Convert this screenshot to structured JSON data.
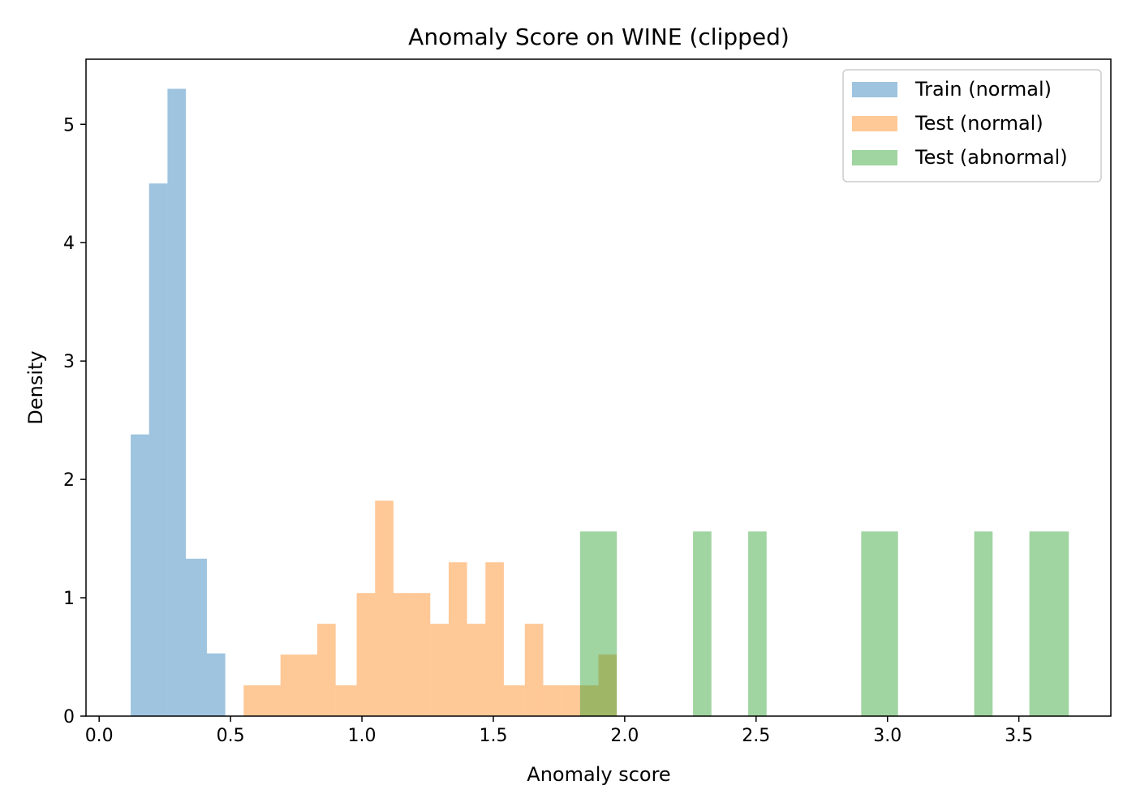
{
  "chart_data": {
    "type": "bar",
    "title": "Anomaly Score on WINE (clipped)",
    "xlabel": "Anomaly score",
    "ylabel": "Density",
    "xlim": [
      -0.05,
      3.85
    ],
    "ylim": [
      0,
      5.55
    ],
    "xticks": [
      0.0,
      0.5,
      1.0,
      1.5,
      2.0,
      2.5,
      3.0,
      3.5
    ],
    "xtick_labels": [
      "0.0",
      "0.5",
      "1.0",
      "1.5",
      "2.0",
      "2.5",
      "3.0",
      "3.5"
    ],
    "yticks": [
      0,
      1,
      2,
      3,
      4,
      5
    ],
    "ytick_labels": [
      "0",
      "1",
      "2",
      "3",
      "4",
      "5"
    ],
    "grid": false,
    "legend_position": "top-right",
    "bin_width": 0.071,
    "series": [
      {
        "name": "Train (normal)",
        "color": "#1f77b4",
        "opacity": 0.43,
        "bins": [
          {
            "x0": 0.12,
            "x1": 0.19,
            "value": 2.38
          },
          {
            "x0": 0.19,
            "x1": 0.26,
            "value": 4.5
          },
          {
            "x0": 0.26,
            "x1": 0.33,
            "value": 5.3
          },
          {
            "x0": 0.33,
            "x1": 0.41,
            "value": 1.33
          },
          {
            "x0": 0.41,
            "x1": 0.48,
            "value": 0.53
          }
        ]
      },
      {
        "name": "Test (normal)",
        "color": "#ff7f0e",
        "opacity": 0.43,
        "bins": [
          {
            "x0": 0.55,
            "x1": 0.62,
            "value": 0.26
          },
          {
            "x0": 0.62,
            "x1": 0.69,
            "value": 0.26
          },
          {
            "x0": 0.69,
            "x1": 0.76,
            "value": 0.52
          },
          {
            "x0": 0.76,
            "x1": 0.83,
            "value": 0.52
          },
          {
            "x0": 0.83,
            "x1": 0.9,
            "value": 0.78
          },
          {
            "x0": 0.9,
            "x1": 0.98,
            "value": 0.26
          },
          {
            "x0": 0.98,
            "x1": 1.05,
            "value": 1.04
          },
          {
            "x0": 1.05,
            "x1": 1.12,
            "value": 1.82
          },
          {
            "x0": 1.12,
            "x1": 1.19,
            "value": 1.04
          },
          {
            "x0": 1.19,
            "x1": 1.26,
            "value": 1.04
          },
          {
            "x0": 1.26,
            "x1": 1.33,
            "value": 0.78
          },
          {
            "x0": 1.33,
            "x1": 1.4,
            "value": 1.3
          },
          {
            "x0": 1.4,
            "x1": 1.47,
            "value": 0.78
          },
          {
            "x0": 1.47,
            "x1": 1.54,
            "value": 1.3
          },
          {
            "x0": 1.54,
            "x1": 1.62,
            "value": 0.26
          },
          {
            "x0": 1.62,
            "x1": 1.69,
            "value": 0.78
          },
          {
            "x0": 1.69,
            "x1": 1.76,
            "value": 0.26
          },
          {
            "x0": 1.76,
            "x1": 1.83,
            "value": 0.26
          },
          {
            "x0": 1.83,
            "x1": 1.9,
            "value": 0.26
          },
          {
            "x0": 1.9,
            "x1": 1.97,
            "value": 0.52
          }
        ]
      },
      {
        "name": "Test (abnormal)",
        "color": "#2ca02c",
        "opacity": 0.45,
        "bins": [
          {
            "x0": 1.83,
            "x1": 1.97,
            "value": 1.56
          },
          {
            "x0": 2.26,
            "x1": 2.33,
            "value": 1.56
          },
          {
            "x0": 2.47,
            "x1": 2.54,
            "value": 1.56
          },
          {
            "x0": 2.9,
            "x1": 3.04,
            "value": 1.56
          },
          {
            "x0": 3.33,
            "x1": 3.4,
            "value": 1.56
          },
          {
            "x0": 3.54,
            "x1": 3.69,
            "value": 1.56
          }
        ]
      }
    ]
  }
}
